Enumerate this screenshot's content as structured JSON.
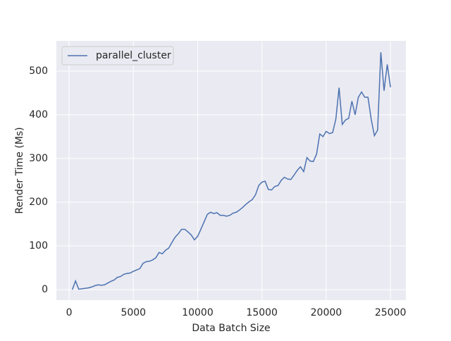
{
  "chart_data": {
    "type": "line",
    "xlabel": "Data Batch Size",
    "ylabel": "Render Time (Ms)",
    "x": [
      250,
      500,
      750,
      1000,
      1250,
      1500,
      1750,
      2000,
      2250,
      2500,
      2750,
      3000,
      3250,
      3500,
      3750,
      4000,
      4250,
      4500,
      4750,
      5000,
      5250,
      5500,
      5750,
      6000,
      6250,
      6500,
      6750,
      7000,
      7250,
      7500,
      7750,
      8000,
      8250,
      8500,
      8750,
      9000,
      9250,
      9500,
      9750,
      10000,
      10250,
      10500,
      10750,
      11000,
      11250,
      11500,
      11750,
      12000,
      12250,
      12500,
      12750,
      13000,
      13250,
      13500,
      13750,
      14000,
      14250,
      14500,
      14750,
      15000,
      15250,
      15500,
      15750,
      16000,
      16250,
      16500,
      16750,
      17000,
      17250,
      17500,
      17750,
      18000,
      18250,
      18500,
      18750,
      19000,
      19250,
      19500,
      19750,
      20000,
      20250,
      20500,
      20750,
      21000,
      21250,
      21500,
      21750,
      22000,
      22250,
      22500,
      22750,
      23000,
      23250,
      23500,
      23750,
      24000,
      24250,
      24500,
      24750,
      25000
    ],
    "series": [
      {
        "name": "parallel_cluster",
        "color": "#4c72b0",
        "values": [
          0,
          20,
          1,
          2,
          3,
          4,
          6,
          9,
          11,
          10,
          11,
          15,
          19,
          22,
          28,
          30,
          35,
          37,
          38,
          42,
          45,
          48,
          60,
          64,
          65,
          68,
          73,
          85,
          82,
          90,
          95,
          108,
          120,
          128,
          138,
          138,
          132,
          125,
          114,
          122,
          138,
          155,
          172,
          177,
          174,
          176,
          170,
          170,
          168,
          170,
          175,
          177,
          182,
          188,
          195,
          201,
          206,
          217,
          238,
          246,
          248,
          229,
          228,
          236,
          238,
          250,
          257,
          253,
          252,
          262,
          273,
          281,
          270,
          302,
          294,
          293,
          310,
          356,
          350,
          362,
          357,
          359,
          390,
          462,
          378,
          388,
          392,
          431,
          400,
          440,
          452,
          440,
          440,
          390,
          352,
          365,
          543,
          455,
          515,
          463
        ]
      }
    ],
    "xlim": [
      -990,
      26200
    ],
    "ylim": [
      -24,
      569
    ],
    "xticks": [
      0,
      5000,
      10000,
      15000,
      20000,
      25000
    ],
    "yticks": [
      0,
      100,
      200,
      300,
      400,
      500
    ],
    "grid": true,
    "legend": "upper left"
  }
}
